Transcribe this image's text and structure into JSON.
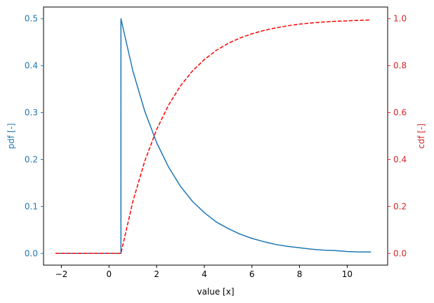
{
  "chart_data": {
    "type": "line",
    "title": "",
    "xlabel": "value [x]",
    "ylabel_left": "pdf [-]",
    "ylabel_right": "cdf [-]",
    "xlim": [
      -2.75,
      11.7
    ],
    "ylim_left": [
      -0.025,
      0.525
    ],
    "ylim_right": [
      -0.05,
      1.05
    ],
    "x_ticks": [
      "-2",
      "0",
      "2",
      "4",
      "6",
      "8",
      "10"
    ],
    "y_left_ticks": [
      "0.0",
      "0.1",
      "0.2",
      "0.3",
      "0.4",
      "0.5"
    ],
    "y_right_ticks": [
      "0.0",
      "0.2",
      "0.4",
      "0.6",
      "0.8",
      "1.0"
    ],
    "grid": false,
    "series": [
      {
        "name": "pdf",
        "axis": "left",
        "color": "#1f77b4",
        "style": "solid",
        "x": [
          -2.25,
          0.0,
          0.5,
          0.5,
          1.0,
          1.5,
          2.0,
          2.5,
          3.0,
          3.5,
          4.0,
          4.5,
          5.0,
          5.5,
          6.0,
          6.5,
          7.0,
          7.5,
          8.0,
          8.5,
          9.0,
          9.5,
          10.0,
          10.5,
          11.0
        ],
        "y": [
          0.0,
          0.0,
          0.0,
          0.5,
          0.389,
          0.303,
          0.236,
          0.184,
          0.143,
          0.111,
          0.087,
          0.067,
          0.053,
          0.041,
          0.032,
          0.025,
          0.019,
          0.015,
          0.012,
          0.009,
          0.007,
          0.006,
          0.004,
          0.003,
          0.003
        ]
      },
      {
        "name": "cdf",
        "axis": "right",
        "color": "#ff0000",
        "style": "dashed",
        "x": [
          -2.25,
          0.0,
          0.5,
          1.0,
          1.5,
          2.0,
          2.5,
          3.0,
          3.5,
          4.0,
          4.5,
          5.0,
          5.5,
          6.0,
          6.5,
          7.0,
          7.5,
          8.0,
          8.5,
          9.0,
          9.5,
          10.0,
          10.5,
          11.0
        ],
        "y": [
          0.0,
          0.0,
          0.0,
          0.221,
          0.393,
          0.528,
          0.632,
          0.714,
          0.777,
          0.826,
          0.865,
          0.895,
          0.918,
          0.936,
          0.95,
          0.961,
          0.97,
          0.977,
          0.982,
          0.986,
          0.989,
          0.991,
          0.993,
          0.995
        ]
      }
    ]
  }
}
